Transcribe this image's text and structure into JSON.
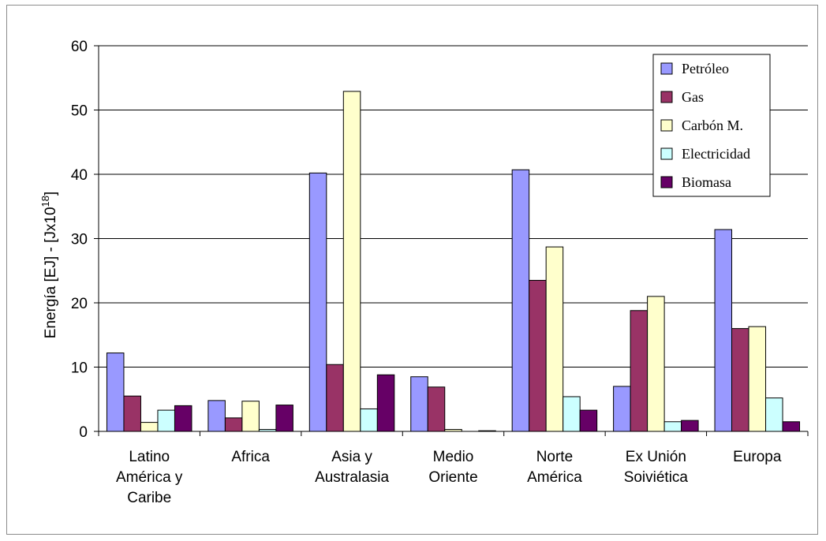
{
  "chart_data": {
    "type": "bar",
    "title": "",
    "xlabel": "",
    "ylabel": "Energía [EJ]  -  [Jx10",
    "ylabel_sup": "18",
    "ylabel_end": "]",
    "ylim": [
      0,
      60
    ],
    "yticks": [
      "0",
      "10",
      "20",
      "30",
      "40",
      "50",
      "60"
    ],
    "grid": true,
    "legend_position": "top-right",
    "categories": [
      [
        "Latino",
        "América y",
        "Caribe"
      ],
      [
        "Africa"
      ],
      [
        "Asia y",
        "Australasia"
      ],
      [
        "Medio",
        "Oriente"
      ],
      [
        "Norte",
        "América"
      ],
      [
        "Ex Unión",
        "Soiviética"
      ],
      [
        "Europa"
      ]
    ],
    "series": [
      {
        "name": "Petróleo",
        "color": "#9999ff",
        "values": [
          12.2,
          4.8,
          40.2,
          8.5,
          40.7,
          7.0,
          31.4
        ]
      },
      {
        "name": "Gas",
        "color": "#993366",
        "values": [
          5.5,
          2.1,
          10.4,
          6.9,
          23.5,
          18.8,
          16.0
        ]
      },
      {
        "name": "Carbón M.",
        "color": "#ffffcc",
        "values": [
          1.4,
          4.7,
          52.9,
          0.3,
          28.7,
          21.0,
          16.3
        ]
      },
      {
        "name": "Electricidad",
        "color": "#ccffff",
        "values": [
          3.3,
          0.3,
          3.5,
          0.0,
          5.4,
          1.5,
          5.2
        ]
      },
      {
        "name": "Biomasa",
        "color": "#660066",
        "values": [
          4.0,
          4.1,
          8.8,
          0.1,
          3.3,
          1.7,
          1.5
        ]
      }
    ]
  }
}
